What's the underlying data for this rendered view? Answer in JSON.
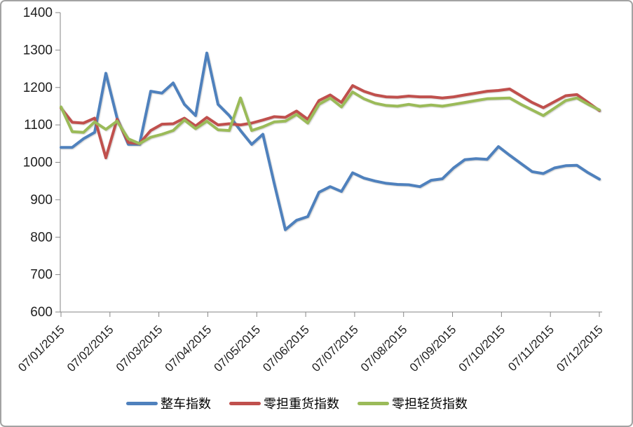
{
  "chart_data": {
    "type": "line",
    "title": "",
    "xlabel": "",
    "ylabel": "",
    "ylim": [
      600,
      1400
    ],
    "y_ticks": [
      600,
      700,
      800,
      900,
      1000,
      1100,
      1200,
      1300,
      1400
    ],
    "x_tick_labels": [
      "07/01/2015",
      "07/02/2015",
      "07/03/2015",
      "07/04/2015",
      "07/05/2015",
      "07/06/2015",
      "07/07/2015",
      "07/08/2015",
      "07/09/2015",
      "07/10/2015",
      "07/11/2015",
      "07/12/2015"
    ],
    "grid": false,
    "legend_position": "bottom",
    "points_per_series": 49,
    "series": [
      {
        "name": "整车指数",
        "color": "#4F81BD",
        "values": [
          1040,
          1040,
          1063,
          1080,
          1238,
          1118,
          1048,
          1048,
          1190,
          1185,
          1212,
          1155,
          1125,
          1292,
          1155,
          1125,
          1085,
          1048,
          1075,
          945,
          820,
          845,
          855,
          920,
          935,
          922,
          972,
          958,
          950,
          944,
          941,
          940,
          935,
          952,
          956,
          985,
          1007,
          1010,
          1008,
          1042,
          1019,
          997,
          975,
          970,
          985,
          991,
          992,
          972,
          955
        ]
      },
      {
        "name": "零担重货指数",
        "color": "#C0504D",
        "values": [
          1145,
          1107,
          1105,
          1118,
          1012,
          1115,
          1053,
          1050,
          1085,
          1102,
          1103,
          1118,
          1097,
          1120,
          1100,
          1103,
          1100,
          1105,
          1113,
          1122,
          1120,
          1137,
          1115,
          1165,
          1180,
          1160,
          1205,
          1190,
          1180,
          1175,
          1174,
          1177,
          1175,
          1175,
          1172,
          1175,
          1180,
          1185,
          1190,
          1192,
          1196,
          1178,
          1160,
          1146,
          1162,
          1178,
          1181,
          1160,
          1138
        ]
      },
      {
        "name": "零担轻货指数",
        "color": "#9BBB59",
        "values": [
          1148,
          1082,
          1080,
          1108,
          1088,
          1110,
          1063,
          1050,
          1067,
          1075,
          1085,
          1113,
          1090,
          1110,
          1087,
          1085,
          1172,
          1085,
          1095,
          1108,
          1110,
          1128,
          1105,
          1155,
          1172,
          1148,
          1188,
          1170,
          1158,
          1152,
          1150,
          1155,
          1150,
          1153,
          1150,
          1155,
          1160,
          1165,
          1170,
          1171,
          1172,
          1155,
          1140,
          1125,
          1145,
          1165,
          1172,
          1155,
          1140
        ]
      }
    ]
  },
  "style": {
    "axis_color": "#868686",
    "text_color": "#1F1F1F",
    "frame_border_color": "#A3A3A3",
    "background": "#FFFFFF"
  }
}
